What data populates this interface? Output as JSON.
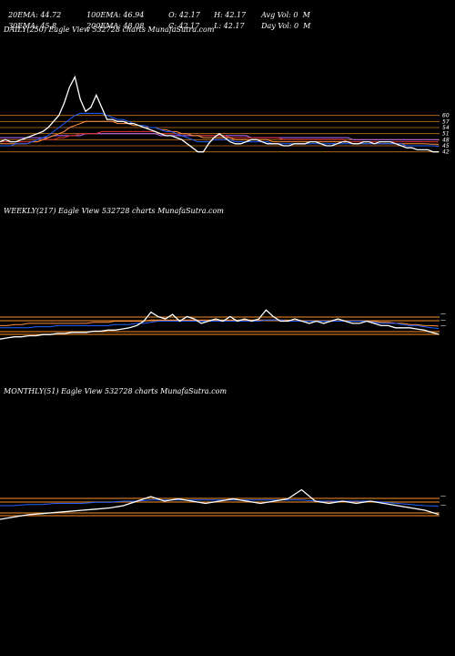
{
  "header": {
    "row1": [
      "20EMA: 44.72",
      "100EMA: 46.94",
      "O: 42.17",
      "H: 42.17",
      "Avg Vol: 0  M"
    ],
    "row2": [
      "30EMA: 45.8",
      "200EMA: 48.08",
      "C: 42.17",
      "L: 42.17",
      "Day Vol: 0  M"
    ]
  },
  "panels": {
    "daily": {
      "label": "DAILY(250) Eagle  View  532728 charts MunafaSutra.com"
    },
    "weekly": {
      "label": "WEEKLY(217) Eagle  View  532728 charts MunafaSutra.com"
    },
    "monthly": {
      "label": "MONTHLY(51) Eagle  View  532728 charts MunafaSutra.com"
    }
  },
  "chart_data": [
    {
      "type": "line",
      "panel": "daily",
      "ylim": [
        36,
        90
      ],
      "price_levels": [
        60,
        57,
        54,
        51,
        48,
        45,
        42
      ],
      "level_labels": [
        "60",
        "57",
        "54",
        "51",
        "48",
        "45",
        "42"
      ],
      "series": [
        {
          "values": [
            47,
            48,
            47,
            47,
            48,
            49,
            50,
            51,
            52,
            54,
            57,
            60,
            66,
            74,
            79,
            68,
            62,
            64,
            70,
            64,
            58,
            58,
            57,
            57,
            56,
            56,
            55,
            54,
            53,
            52,
            51,
            50,
            50,
            49,
            48,
            46,
            44,
            42,
            42,
            46,
            49,
            51,
            49,
            47,
            46,
            46,
            47,
            48,
            48,
            47,
            46,
            46,
            46,
            45,
            45,
            46,
            46,
            46,
            47,
            47,
            46,
            45,
            45,
            46,
            47,
            47,
            46,
            46,
            47,
            47,
            46,
            47,
            47,
            47,
            46,
            45,
            44,
            44,
            43,
            43,
            43,
            42,
            42
          ]
        },
        {
          "values": [
            45,
            45,
            45,
            46,
            46,
            46,
            47,
            48,
            49,
            50,
            52,
            54,
            56,
            58,
            60,
            61,
            61,
            61,
            61,
            61,
            60,
            59,
            58,
            58,
            57,
            56,
            55,
            55,
            54,
            54,
            53,
            52,
            52,
            51,
            50,
            49,
            48,
            47,
            47,
            47,
            48,
            48,
            48,
            48,
            47,
            47,
            47,
            47,
            47,
            47,
            47,
            46,
            46,
            46,
            46,
            46,
            46,
            46,
            46,
            46,
            46,
            46,
            46,
            46,
            46,
            46,
            46,
            46,
            46,
            46,
            46,
            46,
            46,
            46,
            46,
            46,
            45,
            45,
            45,
            45,
            45,
            45,
            44.72
          ]
        },
        {
          "values": [
            46,
            46,
            46,
            46,
            46,
            46,
            47,
            47,
            48,
            49,
            50,
            51,
            52,
            54,
            55,
            56,
            57,
            57,
            57,
            57,
            57,
            57,
            56,
            56,
            56,
            55,
            55,
            54,
            54,
            54,
            53,
            53,
            52,
            52,
            51,
            51,
            50,
            50,
            49,
            49,
            49,
            49,
            49,
            49,
            48,
            48,
            48,
            48,
            48,
            48,
            48,
            47,
            47,
            47,
            47,
            47,
            47,
            47,
            47,
            47,
            47,
            47,
            47,
            47,
            47,
            47,
            46,
            46,
            46,
            46,
            46,
            46,
            46,
            46,
            46,
            46,
            46,
            46,
            46,
            46,
            45.9,
            45.8,
            45.8
          ]
        },
        {
          "values": [
            47,
            47,
            47,
            47,
            47,
            47,
            47,
            47,
            48,
            48,
            48,
            49,
            49,
            50,
            50,
            51,
            51,
            51,
            51,
            52,
            52,
            52,
            52,
            52,
            52,
            52,
            52,
            52,
            52,
            52,
            51,
            51,
            51,
            51,
            51,
            51,
            50,
            50,
            50,
            50,
            50,
            50,
            50,
            49,
            49,
            49,
            49,
            49,
            49,
            49,
            49,
            49,
            49,
            48,
            48,
            48,
            48,
            48,
            48,
            48,
            48,
            48,
            48,
            48,
            48,
            47,
            47,
            47,
            47,
            47,
            47,
            47,
            47,
            47,
            47,
            47,
            47,
            47,
            47,
            47,
            47,
            47,
            46.94
          ]
        },
        {
          "values": [
            49,
            49,
            49,
            49,
            49,
            49,
            49,
            49,
            49,
            49,
            50,
            50,
            50,
            50,
            50,
            50,
            51,
            51,
            51,
            51,
            51,
            51,
            51,
            51,
            51,
            51,
            51,
            51,
            51,
            51,
            50,
            50,
            50,
            50,
            50,
            50,
            50,
            50,
            50,
            50,
            50,
            50,
            50,
            50,
            50,
            50,
            50,
            49,
            49,
            49,
            49,
            49,
            49,
            49,
            49,
            49,
            49,
            49,
            49,
            49,
            49,
            49,
            49,
            49,
            49,
            49,
            48,
            48,
            48,
            48,
            48,
            48,
            48,
            48,
            48,
            48,
            48,
            48,
            48,
            48,
            48,
            48,
            48.08
          ]
        }
      ]
    },
    {
      "type": "line",
      "panel": "weekly",
      "ylim": [
        36,
        62
      ],
      "series": [
        {
          "values": [
            40,
            40.5,
            41,
            41,
            41.5,
            41.5,
            42,
            42,
            42.5,
            42.5,
            43,
            43,
            43,
            43.5,
            43.5,
            44,
            44,
            44.5,
            45,
            46,
            48,
            52,
            50,
            49,
            51,
            48,
            50,
            49,
            47,
            48,
            49,
            48,
            50,
            48,
            49,
            48,
            49,
            53,
            50,
            48,
            48,
            49,
            48,
            47,
            48,
            47,
            48,
            49,
            48,
            47,
            47,
            48,
            47,
            46,
            46,
            45,
            45,
            45,
            44.5,
            44,
            43,
            42.17
          ]
        },
        {
          "values": [
            45,
            45,
            45,
            45,
            45,
            45.5,
            45.5,
            45.5,
            46,
            46,
            46,
            46,
            46,
            46,
            46,
            46,
            46.5,
            46.5,
            46.5,
            47,
            47,
            47.5,
            48,
            48,
            48,
            48,
            48,
            48,
            48,
            48,
            48,
            48,
            48,
            48,
            48,
            48,
            48,
            48.5,
            48.5,
            48.5,
            48,
            48,
            48,
            48,
            48,
            48,
            48,
            48,
            48,
            48,
            48,
            48,
            47.5,
            47,
            47,
            47,
            46.5,
            46,
            46,
            45.5,
            45,
            44.72
          ]
        },
        {
          "values": [
            46,
            46,
            46.5,
            46.5,
            47,
            47,
            47,
            47,
            47,
            47,
            47,
            47,
            47,
            47.5,
            47.5,
            47.5,
            48,
            48,
            48,
            48,
            48,
            48.5,
            48.5,
            48.5,
            48.5,
            48.5,
            48.5,
            48.5,
            48.5,
            48.5,
            48.5,
            48.5,
            48.5,
            48.5,
            48.5,
            48.5,
            48.5,
            48.5,
            48.5,
            48.5,
            48.5,
            48,
            48,
            48,
            48,
            48,
            48,
            48,
            48,
            48,
            48,
            48,
            48,
            47.5,
            47.5,
            47,
            47,
            46.5,
            46.5,
            46,
            46,
            45.8
          ]
        }
      ]
    },
    {
      "type": "line",
      "panel": "monthly",
      "ylim": [
        36,
        62
      ],
      "series": [
        {
          "values": [
            40,
            41,
            42,
            42.5,
            43,
            43.5,
            44,
            44.5,
            45,
            46,
            48,
            50,
            48,
            49,
            48,
            47,
            48,
            49,
            48,
            47,
            48,
            49,
            53,
            48,
            47,
            48,
            47,
            48,
            47,
            46,
            45,
            44,
            42.17
          ]
        },
        {
          "values": [
            46,
            46,
            46.5,
            46.5,
            47,
            47,
            47,
            47.5,
            47.5,
            48,
            48,
            48.5,
            48.5,
            48.5,
            48.5,
            48.5,
            48.5,
            48.5,
            48.5,
            48.5,
            48.5,
            48.5,
            48.5,
            48,
            48,
            48,
            48,
            48,
            47.5,
            47,
            46.5,
            46,
            45.8
          ]
        }
      ]
    }
  ]
}
